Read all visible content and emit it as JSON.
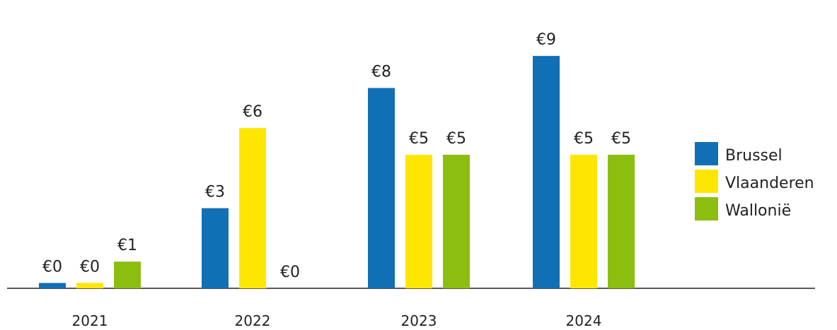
{
  "chart_data": {
    "type": "bar",
    "categories": [
      "2021",
      "2022",
      "2023",
      "2024"
    ],
    "series": [
      {
        "name": "Brussel",
        "color": "#116fb6",
        "values": [
          0.2,
          3,
          7.5,
          8.7
        ],
        "labels": [
          "€0",
          "€3",
          "€8",
          "€9"
        ]
      },
      {
        "name": "Vlaanderen",
        "color": "#ffe600",
        "values": [
          0.2,
          6,
          5,
          5
        ],
        "labels": [
          "€0",
          "€6",
          "€5",
          "€5"
        ]
      },
      {
        "name": "Wallonië",
        "color": "#8cbe0f",
        "values": [
          1,
          0,
          5,
          5
        ],
        "labels": [
          "€1",
          "€0",
          "€5",
          "€5"
        ]
      }
    ],
    "ylim": [
      0,
      10
    ],
    "grid": false,
    "legend_position": "right"
  }
}
